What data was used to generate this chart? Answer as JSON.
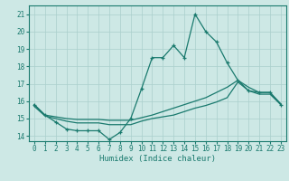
{
  "xlabel": "Humidex (Indice chaleur)",
  "background_color": "#cde8e5",
  "grid_color": "#aacfcc",
  "line_color": "#1a7a6e",
  "xlim": [
    -0.5,
    23.5
  ],
  "ylim": [
    13.7,
    21.5
  ],
  "xticks": [
    0,
    1,
    2,
    3,
    4,
    5,
    6,
    7,
    8,
    9,
    10,
    11,
    12,
    13,
    14,
    15,
    16,
    17,
    18,
    19,
    20,
    21,
    22,
    23
  ],
  "yticks": [
    14,
    15,
    16,
    17,
    18,
    19,
    20,
    21
  ],
  "curve_marker_x": [
    0,
    1,
    2,
    3,
    4,
    5,
    6,
    7,
    8,
    9,
    10,
    11,
    12,
    13,
    14,
    15,
    16,
    17,
    18,
    19,
    20,
    21,
    22,
    23
  ],
  "curve_marker_y": [
    15.8,
    15.2,
    14.8,
    14.4,
    14.3,
    14.3,
    14.3,
    13.8,
    14.2,
    15.0,
    16.7,
    18.5,
    18.5,
    19.2,
    18.5,
    21.0,
    20.0,
    19.4,
    18.2,
    17.2,
    16.6,
    16.5,
    16.5,
    15.8
  ],
  "curve_upper_x": [
    0,
    1,
    2,
    3,
    4,
    5,
    6,
    7,
    8,
    9,
    10,
    11,
    12,
    13,
    14,
    15,
    16,
    17,
    18,
    19,
    20,
    21,
    22,
    23
  ],
  "curve_upper_y": [
    15.8,
    15.2,
    15.1,
    15.0,
    14.95,
    14.95,
    14.95,
    14.9,
    14.9,
    14.9,
    15.05,
    15.2,
    15.4,
    15.6,
    15.8,
    16.0,
    16.2,
    16.5,
    16.8,
    17.2,
    16.8,
    16.5,
    16.5,
    15.85
  ],
  "curve_lower_x": [
    0,
    1,
    2,
    3,
    4,
    5,
    6,
    7,
    8,
    9,
    10,
    11,
    12,
    13,
    14,
    15,
    16,
    17,
    18,
    19,
    20,
    21,
    22,
    23
  ],
  "curve_lower_y": [
    15.7,
    15.15,
    15.0,
    14.85,
    14.75,
    14.75,
    14.75,
    14.65,
    14.65,
    14.65,
    14.85,
    15.0,
    15.1,
    15.2,
    15.4,
    15.6,
    15.75,
    15.95,
    16.2,
    17.1,
    16.6,
    16.4,
    16.4,
    15.8
  ]
}
